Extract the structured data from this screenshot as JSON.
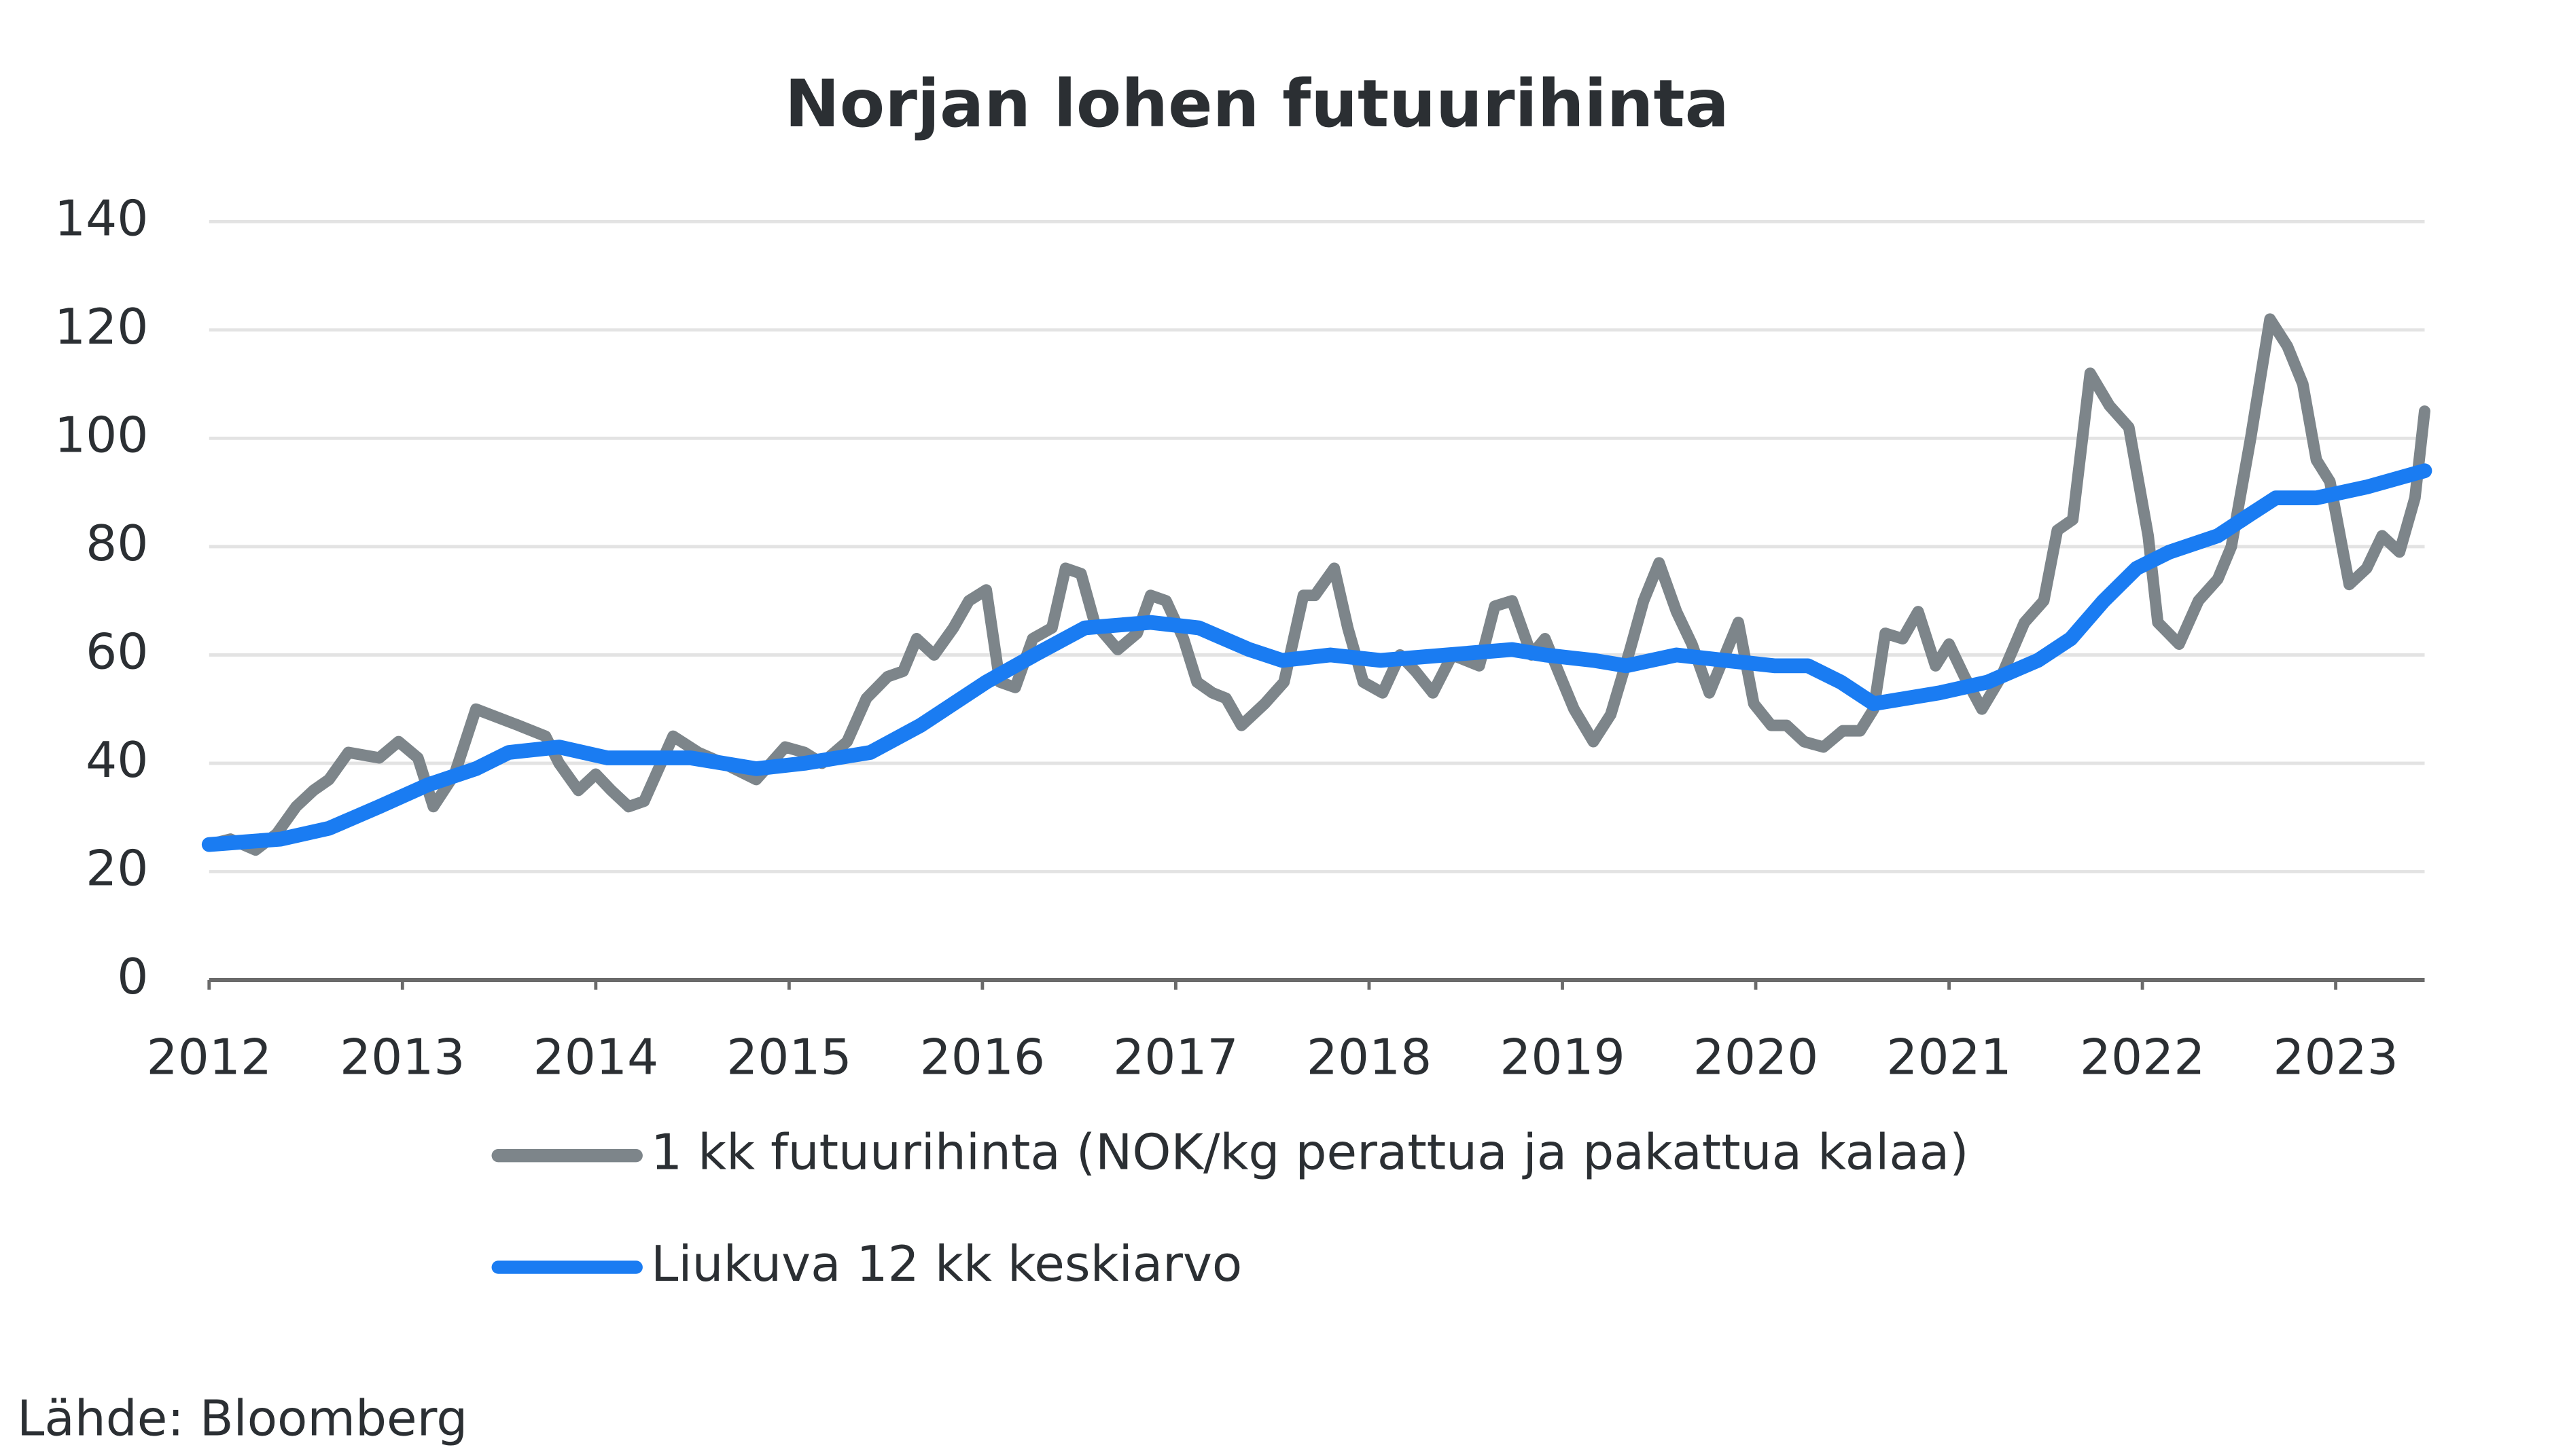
{
  "chart_data": {
    "type": "line",
    "title": "Norjan lohen futuurihinta",
    "source": "Lähde: Bloomberg",
    "xlim": [
      2012,
      2023.46
    ],
    "xticks": [
      2012,
      2013,
      2014,
      2015,
      2016,
      2017,
      2018,
      2019,
      2020,
      2021,
      2022,
      2023
    ],
    "ylim": [
      0,
      140
    ],
    "yticks": [
      0,
      20,
      40,
      60,
      80,
      100,
      120,
      140
    ],
    "grid": true,
    "x": [
      2012.0,
      2012.11,
      2012.24,
      2012.35,
      2012.45,
      2012.54,
      2012.62,
      2012.72,
      2012.88,
      2012.98,
      2013.08,
      2013.16,
      2013.27,
      2013.38,
      2013.6,
      2013.74,
      2013.81,
      2013.91,
      2014.0,
      2014.08,
      2014.17,
      2014.25,
      2014.4,
      2014.53,
      2014.66,
      2014.83,
      2014.98,
      2015.08,
      2015.17,
      2015.3,
      2015.4,
      2015.51,
      2015.59,
      2015.66,
      2015.75,
      2015.85,
      2015.93,
      2016.02,
      2016.09,
      2016.17,
      2016.26,
      2016.36,
      2016.43,
      2016.51,
      2016.58,
      2016.7,
      2016.8,
      2016.87,
      2016.95,
      2017.04,
      2017.11,
      2017.19,
      2017.26,
      2017.34,
      2017.46,
      2017.56,
      2017.66,
      2017.72,
      2017.82,
      2017.89,
      2017.97,
      2018.07,
      2018.16,
      2018.24,
      2018.33,
      2018.43,
      2018.57,
      2018.65,
      2018.74,
      2018.84,
      2018.91,
      2018.99,
      2019.06,
      2019.16,
      2019.25,
      2019.35,
      2019.42,
      2019.5,
      2019.59,
      2019.67,
      2019.76,
      2019.91,
      2019.99,
      2020.08,
      2020.16,
      2020.25,
      2020.35,
      2020.45,
      2020.54,
      2020.61,
      2020.67,
      2020.76,
      2020.84,
      2020.93,
      2021.0,
      2021.08,
      2021.17,
      2021.27,
      2021.39,
      2021.49,
      2021.56,
      2021.64,
      2021.73,
      2021.83,
      2021.93,
      2022.03,
      2022.08,
      2022.19,
      2022.29,
      2022.39,
      2022.46,
      2022.56,
      2022.66,
      2022.75,
      2022.83,
      2022.9,
      2022.97,
      2023.07,
      2023.16,
      2023.24,
      2023.33,
      2023.41,
      2023.46
    ],
    "series": [
      {
        "name": "1 kk futuurihinta (NOK/kg perattua ja pakattua kalaa)",
        "color": "#7d858a",
        "values": [
          25,
          26,
          24,
          27,
          32,
          35,
          37,
          42,
          41,
          44,
          41,
          32,
          38,
          50,
          47,
          45,
          40,
          35,
          38,
          35,
          32,
          33,
          45,
          42,
          40,
          37,
          43,
          42,
          40,
          44,
          52,
          56,
          57,
          63,
          60,
          65,
          70,
          72,
          55,
          54,
          63,
          65,
          76,
          75,
          66,
          61,
          64,
          71,
          70,
          63,
          55,
          53,
          52,
          47,
          51,
          55,
          71,
          71,
          76,
          65,
          55,
          53,
          60,
          57,
          53,
          60,
          58,
          69,
          70,
          60,
          63,
          56,
          50,
          44,
          49,
          61,
          70,
          77,
          68,
          62,
          53,
          66,
          51,
          47,
          47,
          44,
          43,
          46,
          46,
          50,
          64,
          63,
          68,
          58,
          62,
          56,
          50,
          56,
          66,
          70,
          83,
          85,
          112,
          106,
          102,
          82,
          66,
          62,
          70,
          74,
          80,
          100,
          122,
          117,
          110,
          96,
          92,
          73,
          76,
          82,
          79,
          89,
          105
        ]
      },
      {
        "name": "Liukuva 12 kk keskiarvo",
        "color": "#1a7cf2",
        "x": [
          2012.0,
          2012.37,
          2012.62,
          2012.88,
          2013.13,
          2013.38,
          2013.55,
          2013.81,
          2014.06,
          2014.49,
          2014.83,
          2015.08,
          2015.42,
          2015.68,
          2016.02,
          2016.27,
          2016.53,
          2016.87,
          2017.12,
          2017.38,
          2017.55,
          2017.8,
          2018.06,
          2018.4,
          2018.74,
          2018.91,
          2019.16,
          2019.33,
          2019.59,
          2019.84,
          2020.1,
          2020.27,
          2020.44,
          2020.61,
          2020.78,
          2020.95,
          2021.2,
          2021.46,
          2021.63,
          2021.8,
          2021.97,
          2022.14,
          2022.39,
          2022.56,
          2022.69,
          2022.9,
          2023.16,
          2023.46
        ],
        "values": [
          25,
          26,
          28,
          32,
          36,
          39,
          42,
          43,
          41,
          41,
          39,
          40,
          42,
          47,
          55,
          60,
          65,
          66,
          65,
          61,
          59,
          60,
          59,
          60,
          61,
          60,
          59,
          58,
          60,
          59,
          58,
          58,
          55,
          51,
          52,
          53,
          55,
          59,
          63,
          70,
          76,
          79,
          82,
          86,
          89,
          89,
          91,
          94
        ]
      }
    ]
  }
}
